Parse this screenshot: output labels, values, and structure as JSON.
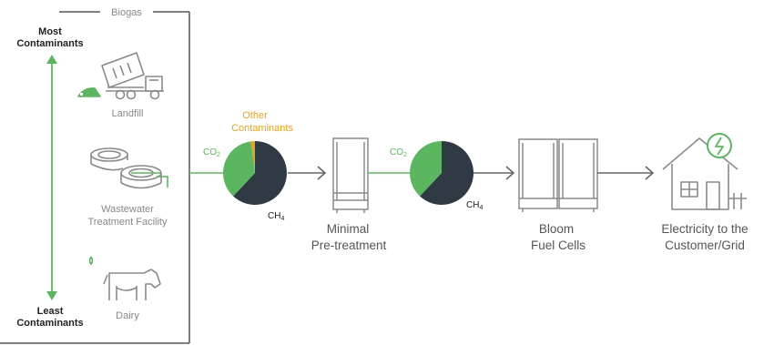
{
  "biogas_label": "Biogas",
  "scale": {
    "top_line1": "Most",
    "top_line2": "Contaminants",
    "bottom_line1": "Least",
    "bottom_line2": "Contaminants"
  },
  "sources": [
    {
      "label_line1": "Landfill",
      "label_line2": "",
      "icon": "dump-truck-icon"
    },
    {
      "label_line1": "Wastewater",
      "label_line2": "Treatment Facility",
      "icon": "wastewater-tanks-icon"
    },
    {
      "label_line1": "Dairy",
      "label_line2": "",
      "icon": "cow-icon"
    }
  ],
  "pie_before": {
    "co2_label": "CO",
    "co2_sub": "2",
    "ch4_label": "CH",
    "ch4_sub": "4",
    "other_line1": "Other",
    "other_line2": "Contaminants",
    "slices": [
      {
        "name": "CH4",
        "fraction": 0.62,
        "color": "#2f3a45"
      },
      {
        "name": "CO2",
        "fraction": 0.36,
        "color": "#5bb75f"
      },
      {
        "name": "Other Contaminants",
        "fraction": 0.02,
        "color": "#e8a317"
      }
    ]
  },
  "pie_after": {
    "co2_label": "CO",
    "co2_sub": "2",
    "ch4_label": "CH",
    "ch4_sub": "4",
    "slices": [
      {
        "name": "CH4",
        "fraction": 0.62,
        "color": "#2f3a45"
      },
      {
        "name": "CO2",
        "fraction": 0.38,
        "color": "#5bb75f"
      }
    ]
  },
  "steps": [
    {
      "line1": "Minimal",
      "line2": "Pre-treatment",
      "icon": "pretreatment-unit-icon"
    },
    {
      "line1": "Bloom",
      "line2": "Fuel Cells",
      "icon": "fuel-cell-icon"
    },
    {
      "line1": "Electricity to the",
      "line2": "Customer/Grid",
      "icon": "house-electricity-icon"
    }
  ],
  "colors": {
    "green": "#5bb75f",
    "dark": "#2f3a45",
    "orange": "#e8a317",
    "icon_gray": "#8a8a8a",
    "line": "#555555",
    "arrow": "#666666"
  }
}
